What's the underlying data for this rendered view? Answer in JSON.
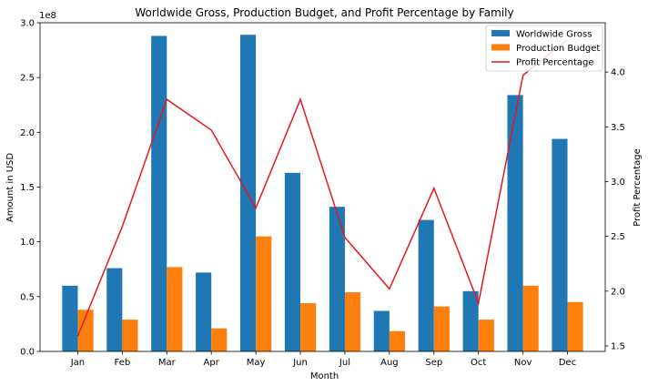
{
  "chart_data": {
    "type": "bar",
    "title": "Worldwide Gross, Production Budget, and Profit Percentage by Family",
    "xlabel": "Month",
    "ylabel": "Amount in USD",
    "y2label": "Profit Percentage",
    "y_offset_label": "1e8",
    "categories": [
      "Jan",
      "Feb",
      "Mar",
      "Apr",
      "May",
      "Jun",
      "Jul",
      "Aug",
      "Sep",
      "Oct",
      "Nov",
      "Dec"
    ],
    "ylim": [
      0,
      300000000
    ],
    "y2lim": [
      1.45,
      4.45
    ],
    "yticks": [
      0,
      50000000,
      100000000,
      150000000,
      200000000,
      250000000,
      300000000
    ],
    "ytick_labels": [
      "0.0",
      "0.5",
      "1.0",
      "1.5",
      "2.0",
      "2.5",
      "3.0"
    ],
    "y2ticks": [
      1.5,
      2.0,
      2.5,
      3.0,
      3.5,
      4.0
    ],
    "y2tick_labels": [
      "1.5",
      "2.0",
      "2.5",
      "3.0",
      "3.5",
      "4.0"
    ],
    "series": [
      {
        "name": "Worldwide Gross",
        "kind": "bar",
        "axis": "left",
        "color": "#1f77b4",
        "values": [
          60000000,
          76000000,
          288000000,
          72000000,
          289000000,
          163000000,
          132000000,
          37000000,
          120000000,
          55000000,
          234000000,
          194000000
        ]
      },
      {
        "name": "Production Budget",
        "kind": "bar",
        "axis": "left",
        "color": "#ff7f0e",
        "values": [
          38000000,
          29000000,
          77000000,
          21000000,
          105000000,
          44000000,
          54000000,
          18500000,
          41000000,
          29000000,
          60000000,
          45000000
        ]
      },
      {
        "name": "Profit Percentage",
        "kind": "line",
        "axis": "right",
        "color": "#e8171c",
        "values": [
          1.59,
          2.59,
          3.75,
          3.47,
          2.76,
          3.75,
          2.49,
          2.02,
          2.94,
          1.89,
          3.97,
          4.3
        ]
      }
    ],
    "legend": "top-right",
    "grid": false
  }
}
